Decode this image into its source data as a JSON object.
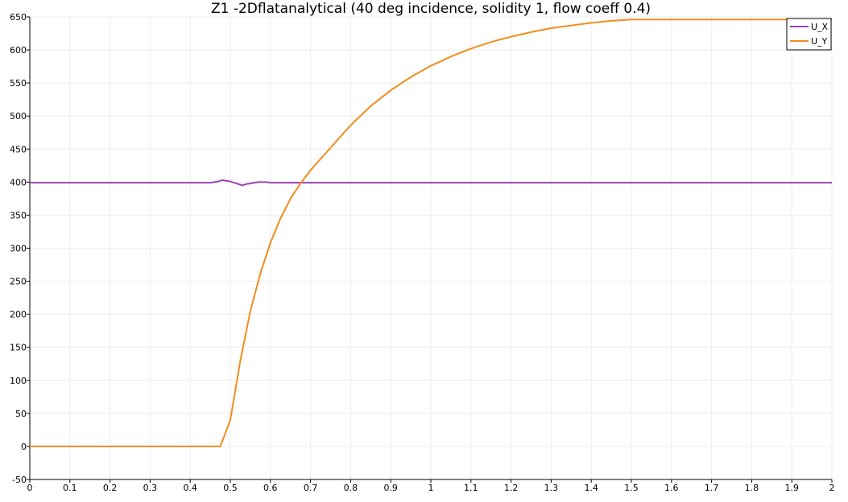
{
  "chart_data": {
    "type": "line",
    "title": "Z1 -2Dflatanalytical (40 deg incidence, solidity 1, flow coeff 0.4)",
    "xlabel": "",
    "ylabel": "",
    "xlim": [
      0,
      2
    ],
    "ylim": [
      -50,
      650
    ],
    "xticks": [
      0,
      0.1,
      0.2,
      0.3,
      0.4,
      0.5,
      0.6,
      0.7,
      0.8,
      0.9,
      1,
      1.1,
      1.2,
      1.3,
      1.4,
      1.5,
      1.6,
      1.7,
      1.8,
      1.9,
      2
    ],
    "xtick_labels": [
      "0",
      "0.1",
      "0.2",
      "0.3",
      "0.4",
      "0.5",
      "0.6",
      "0.7",
      "0.8",
      "0.9",
      "1",
      "1.1",
      "1.2",
      "1.3",
      "1.4",
      "1.5",
      "1.6",
      "1.7",
      "1.8",
      "1.9",
      "2"
    ],
    "yticks": [
      -50,
      0,
      50,
      100,
      150,
      200,
      250,
      300,
      350,
      400,
      450,
      500,
      550,
      600,
      650
    ],
    "ytick_labels": [
      "-50",
      "0",
      "50",
      "100",
      "150",
      "200",
      "250",
      "300",
      "350",
      "400",
      "450",
      "500",
      "550",
      "600",
      "650"
    ],
    "grid": true,
    "legend_position": "top-right",
    "series": [
      {
        "name": "U_X",
        "color": "#9A44B2",
        "x": [
          0,
          0.4,
          0.45,
          0.47,
          0.48,
          0.49,
          0.5,
          0.51,
          0.52,
          0.53,
          0.54,
          0.55,
          0.57,
          0.59,
          0.6,
          0.7,
          1.0,
          1.5,
          2.0
        ],
        "y": [
          399,
          399,
          399,
          401,
          403,
          402,
          401,
          399,
          397,
          395,
          397,
          398,
          400,
          400,
          399,
          399,
          399,
          399,
          399
        ]
      },
      {
        "name": "U_Y",
        "color": "#F28C1C",
        "x": [
          0,
          0.1,
          0.2,
          0.3,
          0.4,
          0.46,
          0.475,
          0.5,
          0.525,
          0.55,
          0.575,
          0.6,
          0.625,
          0.65,
          0.675,
          0.7,
          0.75,
          0.8,
          0.85,
          0.9,
          0.95,
          1.0,
          1.05,
          1.1,
          1.15,
          1.2,
          1.25,
          1.3,
          1.35,
          1.4,
          1.45,
          1.5,
          1.55,
          1.6,
          1.7,
          1.8,
          1.9,
          2.0
        ],
        "y": [
          0,
          0,
          0,
          0,
          0,
          0,
          0,
          40,
          130,
          205,
          262,
          308,
          345,
          375,
          398,
          418,
          452,
          486,
          515,
          539,
          559,
          576,
          590,
          602,
          612,
          620,
          627,
          633,
          637,
          641,
          644,
          646,
          646,
          646,
          646,
          646,
          646,
          646
        ]
      }
    ]
  }
}
